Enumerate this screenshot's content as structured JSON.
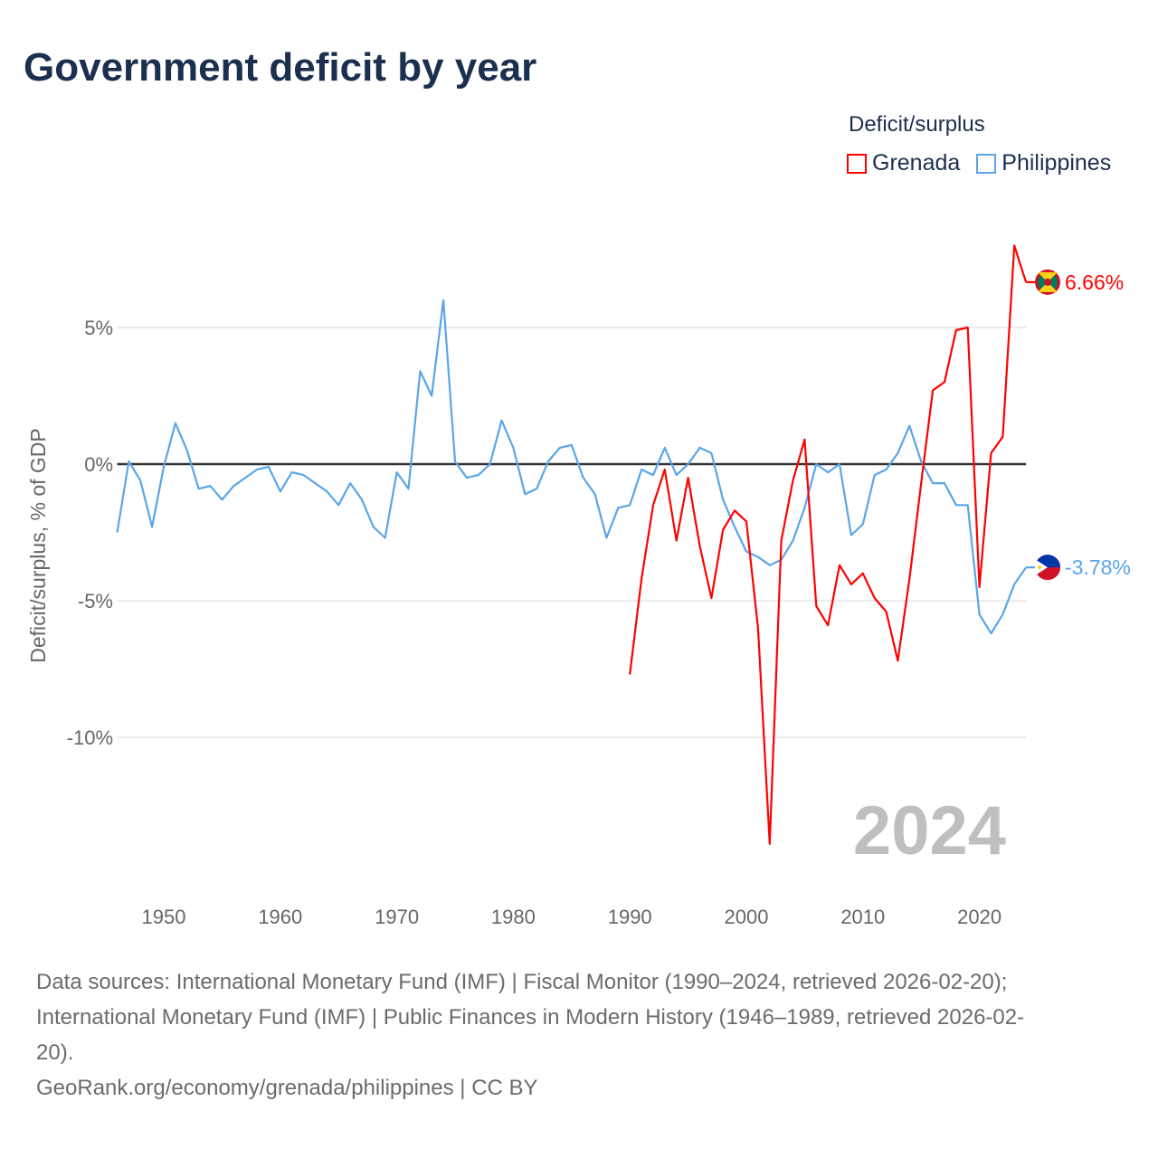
{
  "title": "Government deficit by year",
  "chart_data": {
    "type": "line",
    "title": "Government deficit by year",
    "ylabel": "Deficit/surplus, % of GDP",
    "xlabel": "",
    "legend_title": "Deficit/surplus",
    "legend_position": "top-right",
    "ylim": [
      -15.5,
      9
    ],
    "xlim": [
      1946,
      2024
    ],
    "y_ticks": [
      {
        "v": 5,
        "label": "5%"
      },
      {
        "v": 0,
        "label": "0%"
      },
      {
        "v": -5,
        "label": "-5%"
      },
      {
        "v": -10,
        "label": "-10%"
      }
    ],
    "x_ticks": [
      {
        "v": 1950,
        "label": "1950"
      },
      {
        "v": 1960,
        "label": "1960"
      },
      {
        "v": 1970,
        "label": "1970"
      },
      {
        "v": 1980,
        "label": "1980"
      },
      {
        "v": 1990,
        "label": "1990"
      },
      {
        "v": 2000,
        "label": "2000"
      },
      {
        "v": 2010,
        "label": "2010"
      },
      {
        "v": 2020,
        "label": "2020"
      }
    ],
    "year_watermark": "2024",
    "series": [
      {
        "name": "Grenada",
        "color": "#ff0000",
        "end_label": "6.66%",
        "start_year": 1990,
        "values": [
          -7.7,
          -4.2,
          -1.5,
          -0.2,
          -2.8,
          -0.5,
          -3.0,
          -4.9,
          -2.4,
          -1.7,
          -2.1,
          -6.0,
          -13.9,
          -2.8,
          -0.6,
          0.9,
          -5.2,
          -5.9,
          -3.7,
          -4.4,
          -4.0,
          -4.9,
          -5.4,
          -7.2,
          -4.2,
          -0.7,
          2.7,
          3.0,
          4.9,
          5.0,
          -4.5,
          0.4,
          1.0,
          8.0,
          6.66
        ]
      },
      {
        "name": "Philippines",
        "color": "#5aa5ea",
        "end_label": "-3.78%",
        "start_year": 1946,
        "values": [
          -2.5,
          0.1,
          -0.6,
          -2.3,
          -0.1,
          1.5,
          0.5,
          -0.9,
          -0.8,
          -1.3,
          -0.8,
          -0.5,
          -0.2,
          -0.1,
          -1.0,
          -0.3,
          -0.4,
          -0.7,
          -1.0,
          -1.5,
          -0.7,
          -1.3,
          -2.3,
          -2.7,
          -0.3,
          -0.9,
          3.4,
          2.5,
          6.0,
          0.1,
          -0.5,
          -0.4,
          0.0,
          1.6,
          0.6,
          -1.1,
          -0.9,
          0.1,
          0.6,
          0.7,
          -0.5,
          -1.1,
          -2.7,
          -1.6,
          -1.5,
          -0.2,
          -0.4,
          0.6,
          -0.4,
          0.0,
          0.6,
          0.4,
          -1.3,
          -2.3,
          -3.2,
          -3.4,
          -3.7,
          -3.5,
          -2.8,
          -1.6,
          0.0,
          -0.3,
          0.0,
          -2.6,
          -2.2,
          -0.4,
          -0.2,
          0.4,
          1.4,
          0.1,
          -0.7,
          -0.7,
          -1.5,
          -1.5,
          -5.5,
          -6.2,
          -5.5,
          -4.4,
          -3.78
        ]
      }
    ]
  },
  "footer": {
    "line1": "Data sources: International Monetary Fund (IMF) | Fiscal Monitor (1990–2024, retrieved 2026-02-20);",
    "line2": "International Monetary Fund (IMF) | Public Finances in Modern History (1946–1989, retrieved 2026-02-",
    "line3": "20).",
    "line4": "GeoRank.org/economy/grenada/philippines | CC BY"
  }
}
